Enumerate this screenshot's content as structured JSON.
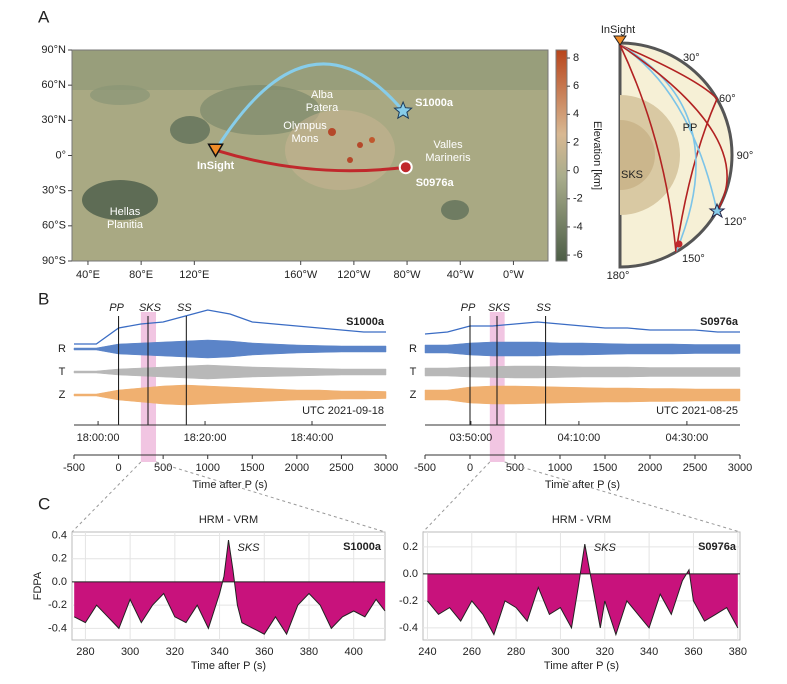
{
  "chart_data": [
    {
      "type": "map",
      "panel": "A",
      "xlim": [
        28,
        386
      ],
      "ylim": [
        -90,
        90
      ],
      "xticks": [
        {
          "value": 40,
          "label": "40°E"
        },
        {
          "value": 80,
          "label": "80°E"
        },
        {
          "value": 120,
          "label": "120°E"
        },
        {
          "value": 200,
          "label": "160°W"
        },
        {
          "value": 240,
          "label": "120°W"
        },
        {
          "value": 280,
          "label": "80°W"
        },
        {
          "value": 320,
          "label": "40°W"
        },
        {
          "value": 360,
          "label": "0°W"
        }
      ],
      "yticks": [
        {
          "value": 90,
          "label": "90°N"
        },
        {
          "value": 60,
          "label": "60°N"
        },
        {
          "value": 30,
          "label": "30°N"
        },
        {
          "value": 0,
          "label": "0°"
        },
        {
          "value": -30,
          "label": "30°S"
        },
        {
          "value": -60,
          "label": "60°S"
        },
        {
          "value": -90,
          "label": "90°S"
        }
      ],
      "station": {
        "name": "InSight",
        "lon": 136,
        "lat": 4.5,
        "color": "#f08c28"
      },
      "events": [
        {
          "name": "S1000a",
          "lon": 277,
          "lat": 38,
          "color": "#87cdea",
          "marker": "star"
        },
        {
          "name": "S0976a",
          "lon": 279,
          "lat": -10,
          "color": "#c0282c",
          "marker": "circle"
        }
      ],
      "places": [
        [
          "Alba",
          "Patera"
        ],
        [
          "Olympus",
          "Mons"
        ],
        [
          "Valles",
          "Marineris"
        ],
        [
          "Hellas",
          "Planitia"
        ]
      ],
      "colorbar": {
        "label": "Elevation [km]",
        "ylim": [
          -6.42,
          8.57
        ],
        "yticks": [
          8,
          6,
          4,
          2,
          0,
          -2,
          -4,
          -6
        ]
      }
    },
    {
      "type": "diagram",
      "labels": [
        "InSight",
        "30°",
        "60°",
        "90°",
        "120°",
        "150°",
        "180°",
        "PP",
        "SKS"
      ]
    },
    {
      "type": "waveform",
      "panel": "B",
      "event": "S1000a",
      "date": "UTC 2021-09-18",
      "xlabel": "Time after P (s)",
      "xlim": [
        -500,
        3000
      ],
      "xticks": [
        -500,
        0,
        500,
        1000,
        1500,
        2000,
        2500,
        3000
      ],
      "utc_ticks": [
        {
          "value": -230,
          "label": "18:00:00"
        },
        {
          "value": 970,
          "label": "18:20:00"
        },
        {
          "value": 2170,
          "label": "18:40:00"
        }
      ],
      "phases": [
        {
          "name": "PP",
          "x": 0
        },
        {
          "name": "SKS",
          "x": 330
        },
        {
          "name": "SS",
          "x": 760
        }
      ],
      "highlight": [
        250,
        420
      ],
      "x": [
        -500,
        -250,
        0,
        250,
        500,
        750,
        1000,
        1250,
        1500,
        1750,
        2000,
        2250,
        2500,
        2750,
        3000
      ],
      "envelope": {
        "color": "#3a6cc4",
        "values": [
          0.05,
          0.05,
          0.45,
          0.55,
          0.6,
          0.75,
          0.9,
          0.8,
          0.6,
          0.55,
          0.5,
          0.45,
          0.4,
          0.35,
          0.35
        ]
      },
      "traces": [
        {
          "name": "R",
          "color": "#5b84c8",
          "values": [
            0.1,
            0.1,
            0.5,
            0.6,
            0.7,
            0.8,
            0.9,
            0.8,
            0.6,
            0.5,
            0.4,
            0.35,
            0.3,
            0.3,
            0.3
          ]
        },
        {
          "name": "T",
          "color": "#b8b8b8",
          "values": [
            0.1,
            0.1,
            0.3,
            0.4,
            0.5,
            0.6,
            0.7,
            0.6,
            0.5,
            0.45,
            0.4,
            0.35,
            0.3,
            0.3,
            0.3
          ]
        },
        {
          "name": "Z",
          "color": "#f0b070",
          "values": [
            0.1,
            0.1,
            0.5,
            0.7,
            0.9,
            1,
            0.9,
            0.8,
            0.7,
            0.6,
            0.5,
            0.5,
            0.4,
            0.4,
            0.35
          ]
        }
      ]
    },
    {
      "type": "waveform",
      "event": "S0976a",
      "date": "UTC 2021-08-25",
      "xlabel": "Time after P (s)",
      "xlim": [
        -500,
        3000
      ],
      "xticks": [
        -500,
        0,
        500,
        1000,
        1500,
        2000,
        2500,
        3000
      ],
      "utc_ticks": [
        {
          "value": 10,
          "label": "03:50:00"
        },
        {
          "value": 1210,
          "label": "04:10:00"
        },
        {
          "value": 2410,
          "label": "04:30:00"
        }
      ],
      "phases": [
        {
          "name": "PP",
          "x": 0
        },
        {
          "name": "SKS",
          "x": 300
        },
        {
          "name": "SS",
          "x": 840
        }
      ],
      "highlight": [
        220,
        385
      ],
      "x": [
        -500,
        -250,
        0,
        250,
        500,
        750,
        1000,
        1250,
        1500,
        1750,
        2000,
        2250,
        2500,
        2750,
        3000
      ],
      "envelope": {
        "color": "#3a6cc4",
        "values": [
          0.3,
          0.35,
          0.5,
          0.5,
          0.55,
          0.6,
          0.55,
          0.5,
          0.45,
          0.45,
          0.4,
          0.4,
          0.4,
          0.35,
          0.35
        ]
      },
      "traces": [
        {
          "name": "R",
          "color": "#5b84c8",
          "values": [
            0.4,
            0.4,
            0.6,
            0.7,
            0.7,
            0.7,
            0.6,
            0.6,
            0.55,
            0.5,
            0.5,
            0.5,
            0.45,
            0.45,
            0.45
          ]
        },
        {
          "name": "T",
          "color": "#b8b8b8",
          "values": [
            0.4,
            0.4,
            0.5,
            0.55,
            0.6,
            0.6,
            0.55,
            0.5,
            0.5,
            0.5,
            0.45,
            0.45,
            0.45,
            0.45,
            0.45
          ]
        },
        {
          "name": "Z",
          "color": "#f0b070",
          "values": [
            0.5,
            0.5,
            0.8,
            0.9,
            0.9,
            0.85,
            0.8,
            0.75,
            0.7,
            0.7,
            0.65,
            0.65,
            0.6,
            0.6,
            0.6
          ]
        }
      ]
    },
    {
      "type": "area",
      "panel": "C",
      "title": "HRM - VRM",
      "event": "S1000a",
      "annotation": "SKS",
      "ylabel": "FDPA",
      "xlabel": "Time after P (s)",
      "color": "#c8127c",
      "grid": true,
      "xlim": [
        274,
        414
      ],
      "ylim": [
        -0.5,
        0.43
      ],
      "xticks": [
        280,
        300,
        320,
        340,
        360,
        380,
        400
      ],
      "yticks": [
        0.4,
        0.2,
        {
          "value": 0,
          "label": "0.0"
        },
        -0.2,
        -0.4
      ],
      "x": [
        275,
        280,
        285,
        290,
        295,
        300,
        305,
        310,
        315,
        320,
        325,
        330,
        335,
        340,
        342,
        344,
        346,
        348,
        350,
        355,
        360,
        365,
        370,
        375,
        380,
        385,
        390,
        395,
        400,
        405,
        410,
        414
      ],
      "values": [
        -0.3,
        -0.35,
        -0.2,
        -0.3,
        -0.4,
        -0.15,
        -0.35,
        -0.2,
        -0.1,
        -0.3,
        -0.35,
        -0.2,
        -0.4,
        -0.1,
        0.05,
        0.36,
        0.1,
        -0.2,
        -0.35,
        -0.4,
        -0.45,
        -0.3,
        -0.45,
        -0.2,
        -0.1,
        -0.2,
        -0.4,
        -0.3,
        -0.25,
        -0.3,
        -0.15,
        -0.25
      ]
    },
    {
      "type": "area",
      "title": "HRM - VRM",
      "event": "S0976a",
      "annotation": "SKS",
      "xlabel": "Time after P (s)",
      "color": "#c8127c",
      "grid": true,
      "xlim": [
        238,
        381
      ],
      "ylim": [
        -0.49,
        0.31
      ],
      "xticks": [
        240,
        260,
        280,
        300,
        320,
        340,
        360,
        380
      ],
      "yticks": [
        0.2,
        {
          "value": 0,
          "label": "0.0"
        },
        -0.2,
        -0.4
      ],
      "x": [
        240,
        245,
        250,
        255,
        260,
        265,
        270,
        275,
        280,
        285,
        290,
        295,
        300,
        305,
        308,
        311,
        314,
        318,
        320,
        325,
        330,
        335,
        340,
        345,
        350,
        355,
        358,
        360,
        365,
        370,
        375,
        380
      ],
      "values": [
        -0.2,
        -0.3,
        -0.25,
        -0.35,
        -0.2,
        -0.3,
        -0.45,
        -0.2,
        -0.25,
        -0.35,
        -0.1,
        -0.3,
        -0.25,
        -0.4,
        -0.1,
        0.22,
        -0.05,
        -0.4,
        -0.2,
        -0.45,
        -0.2,
        -0.3,
        -0.4,
        -0.15,
        -0.3,
        -0.05,
        0.03,
        -0.2,
        -0.35,
        -0.3,
        -0.25,
        -0.4
      ]
    }
  ]
}
